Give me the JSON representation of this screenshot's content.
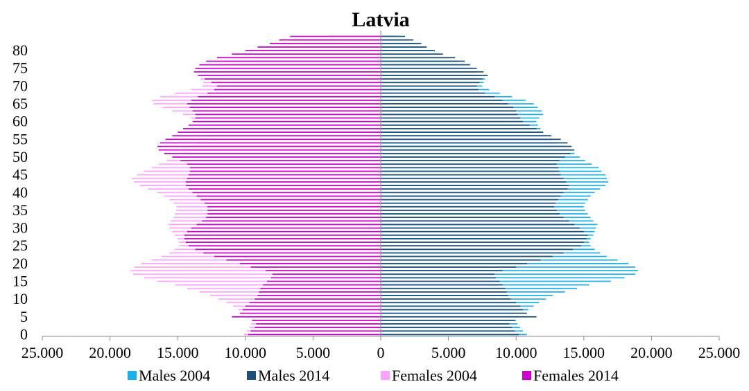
{
  "chart_data": {
    "type": "bar",
    "orientation": "horizontal",
    "subtype": "population-pyramid",
    "title": "Latvia",
    "xlabel": "",
    "ylabel": "",
    "xlim": [
      -25000,
      25000
    ],
    "x_ticks": [
      -25000,
      -20000,
      -15000,
      -10000,
      -5000,
      0,
      5000,
      10000,
      15000,
      20000,
      25000
    ],
    "x_tick_labels": [
      "25.000",
      "20.000",
      "15.000",
      "10.000",
      "5.000",
      "0",
      "5.000",
      "10.000",
      "15.000",
      "20.000",
      "25.000"
    ],
    "y_ticks": [
      0,
      5,
      10,
      15,
      20,
      25,
      30,
      35,
      40,
      45,
      50,
      55,
      60,
      65,
      70,
      75,
      80
    ],
    "y_tick_labels": [
      "0",
      "5",
      "10",
      "15",
      "20",
      "25",
      "30",
      "35",
      "40",
      "45",
      "50",
      "55",
      "60",
      "65",
      "70",
      "75",
      "80"
    ],
    "ages": [
      0,
      1,
      2,
      3,
      4,
      5,
      6,
      7,
      8,
      9,
      10,
      11,
      12,
      13,
      14,
      15,
      16,
      17,
      18,
      19,
      20,
      21,
      22,
      23,
      24,
      25,
      26,
      27,
      28,
      29,
      30,
      31,
      32,
      33,
      34,
      35,
      36,
      37,
      38,
      39,
      40,
      41,
      42,
      43,
      44,
      45,
      46,
      47,
      48,
      49,
      50,
      51,
      52,
      53,
      54,
      55,
      56,
      57,
      58,
      59,
      60,
      61,
      62,
      63,
      64,
      65,
      66,
      67,
      68,
      69,
      70,
      71,
      72,
      73,
      74,
      75,
      76,
      77,
      78,
      79,
      80,
      81,
      82,
      83,
      84
    ],
    "grid": false,
    "legend_position": "bottom",
    "series": [
      {
        "name": "Males 2004",
        "side": "right",
        "color": "#1ab0e8",
        "values": [
          10800,
          10500,
          10300,
          10100,
          10000,
          10200,
          10600,
          10900,
          11300,
          11700,
          12200,
          12700,
          13600,
          14500,
          15400,
          17000,
          18000,
          18800,
          19000,
          18800,
          18300,
          17500,
          16700,
          16200,
          15800,
          15500,
          15400,
          15500,
          15700,
          15800,
          15900,
          16000,
          15700,
          15500,
          15300,
          15100,
          15000,
          15100,
          15300,
          15500,
          15800,
          16200,
          16600,
          16800,
          16700,
          16600,
          16300,
          16100,
          15600,
          15100,
          14700,
          14300,
          14000,
          13600,
          13100,
          12700,
          12300,
          12000,
          11800,
          11600,
          11500,
          11700,
          12000,
          11900,
          11600,
          11300,
          10700,
          9700,
          8800,
          8000,
          7500,
          7600,
          7700,
          7400,
          7100,
          6800,
          6400,
          5700,
          5000,
          4400,
          3800,
          3300,
          2800,
          2100,
          1200
        ]
      },
      {
        "name": "Males 2014",
        "side": "right",
        "color": "#1f4e79",
        "values": [
          10200,
          9900,
          9700,
          9500,
          9900,
          11500,
          10800,
          10500,
          10300,
          10000,
          9600,
          9400,
          9300,
          9200,
          9000,
          8800,
          8500,
          8400,
          9000,
          10000,
          10800,
          11800,
          12700,
          13500,
          14200,
          14800,
          15000,
          15200,
          15300,
          15000,
          14700,
          14300,
          13900,
          13500,
          13200,
          13000,
          12800,
          12900,
          13100,
          13300,
          13500,
          13800,
          13900,
          13700,
          13500,
          13300,
          13200,
          13100,
          13000,
          13200,
          13600,
          14000,
          14300,
          14100,
          13800,
          13300,
          12600,
          12000,
          11500,
          11000,
          10500,
          10300,
          10100,
          10000,
          9800,
          9400,
          9000,
          8400,
          7700,
          7200,
          7100,
          7300,
          7500,
          7900,
          7600,
          7100,
          6600,
          6200,
          5500,
          4600,
          4000,
          3400,
          3000,
          2400,
          1800
        ]
      },
      {
        "name": "Females 2004",
        "side": "left",
        "color": "#ffa2ff",
        "values": [
          10100,
          9900,
          9700,
          9600,
          9500,
          9700,
          10100,
          10500,
          10900,
          11400,
          12000,
          12600,
          13400,
          14300,
          15200,
          16500,
          17500,
          18300,
          18500,
          18200,
          17700,
          16900,
          16200,
          15600,
          15200,
          14900,
          14900,
          15000,
          15200,
          15400,
          15600,
          15700,
          15500,
          15300,
          15200,
          15100,
          15100,
          15300,
          15600,
          16000,
          16500,
          17200,
          17800,
          18200,
          18400,
          18000,
          17500,
          16900,
          16400,
          15800,
          15300,
          14800,
          14400,
          14000,
          13500,
          13100,
          12800,
          12600,
          12700,
          13100,
          13500,
          14000,
          14600,
          15400,
          16100,
          16800,
          16900,
          16300,
          15200,
          14000,
          13200,
          13100,
          13300,
          13200,
          12800,
          12500,
          12100,
          11600,
          10900,
          10100,
          9300,
          8500,
          7700,
          6700,
          3700
        ]
      },
      {
        "name": "Females 2014",
        "side": "left",
        "color": "#cc00cc",
        "values": [
          9800,
          9600,
          9300,
          9200,
          9500,
          11000,
          10400,
          10200,
          10000,
          9700,
          9300,
          9100,
          9000,
          8900,
          8700,
          8400,
          8100,
          8000,
          8500,
          9600,
          10400,
          11400,
          12300,
          13100,
          13700,
          14200,
          14400,
          14500,
          14500,
          14300,
          14000,
          13600,
          13200,
          12900,
          12800,
          12800,
          12800,
          13000,
          13300,
          13600,
          13900,
          14200,
          14400,
          14400,
          14300,
          14200,
          14100,
          14100,
          14300,
          14800,
          15400,
          16000,
          16400,
          16500,
          16300,
          15900,
          15400,
          15000,
          14600,
          14200,
          13900,
          13700,
          13700,
          13900,
          14100,
          14300,
          14000,
          13500,
          12800,
          12300,
          12100,
          12500,
          13000,
          13500,
          13800,
          13700,
          13400,
          12900,
          12100,
          11000,
          10000,
          9100,
          8200,
          7500,
          6700
        ]
      }
    ]
  }
}
